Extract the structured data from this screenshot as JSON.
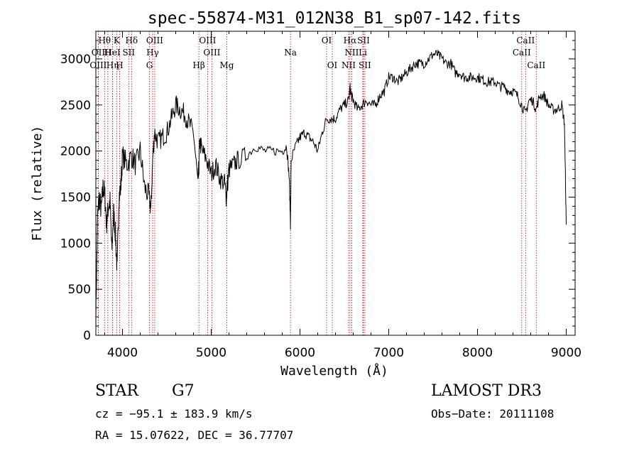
{
  "chart_data": {
    "type": "line",
    "title": "spec-55874-M31_012N38_B1_sp07-142.fits",
    "xlabel": "Wavelength (Å)",
    "ylabel": "Flux (relative)",
    "xlim": [
      3700,
      9100
    ],
    "ylim": [
      0,
      3300
    ],
    "x_ticks": [
      4000,
      5000,
      6000,
      7000,
      8000,
      9000
    ],
    "y_ticks": [
      0,
      500,
      1000,
      1500,
      2000,
      2500,
      3000
    ],
    "grid": false,
    "series": [
      {
        "name": "flux",
        "x": [
          3700,
          3720,
          3740,
          3760,
          3780,
          3800,
          3820,
          3840,
          3860,
          3880,
          3900,
          3920,
          3940,
          3960,
          3980,
          4000,
          4050,
          4100,
          4150,
          4200,
          4250,
          4300,
          4320,
          4340,
          4360,
          4400,
          4450,
          4500,
          4550,
          4600,
          4650,
          4700,
          4750,
          4800,
          4850,
          4860,
          4870,
          4900,
          4950,
          5000,
          5050,
          5100,
          5150,
          5170,
          5180,
          5200,
          5250,
          5300,
          5400,
          5500,
          5600,
          5700,
          5800,
          5850,
          5880,
          5893,
          5900,
          5950,
          6000,
          6050,
          6100,
          6150,
          6200,
          6250,
          6300,
          6350,
          6400,
          6450,
          6500,
          6550,
          6563,
          6580,
          6600,
          6650,
          6700,
          6750,
          6800,
          6850,
          6900,
          6950,
          7000,
          7050,
          7100,
          7150,
          7200,
          7250,
          7300,
          7350,
          7400,
          7450,
          7500,
          7550,
          7600,
          7650,
          7700,
          7750,
          7800,
          7850,
          7900,
          7950,
          8000,
          8050,
          8100,
          8150,
          8200,
          8250,
          8300,
          8350,
          8400,
          8450,
          8498,
          8542,
          8580,
          8620,
          8662,
          8700,
          8750,
          8800,
          8850,
          8900,
          8950,
          8980,
          9000
        ],
        "y": [
          200,
          1300,
          1500,
          1350,
          1600,
          1550,
          1200,
          1400,
          1450,
          900,
          1350,
          1100,
          700,
          1500,
          1600,
          1950,
          1850,
          1950,
          1850,
          2000,
          1600,
          1500,
          1350,
          1900,
          2200,
          2100,
          2150,
          2200,
          2350,
          2500,
          2450,
          2400,
          2300,
          2200,
          1650,
          1800,
          2100,
          2000,
          1900,
          1750,
          1850,
          1700,
          1650,
          1500,
          1600,
          1800,
          1850,
          1900,
          1950,
          2050,
          2000,
          2000,
          2000,
          2050,
          1700,
          1200,
          1900,
          2050,
          2150,
          2200,
          2150,
          2100,
          2000,
          2200,
          2350,
          2350,
          2350,
          2450,
          2500,
          2550,
          2700,
          2600,
          2550,
          2450,
          2500,
          2550,
          2500,
          2500,
          2600,
          2650,
          2800,
          2800,
          2750,
          2800,
          2850,
          2900,
          2950,
          2950,
          2950,
          3000,
          3050,
          3050,
          3000,
          2950,
          2950,
          2850,
          2850,
          2800,
          2800,
          2800,
          2800,
          2780,
          2750,
          2750,
          2750,
          2700,
          2700,
          2650,
          2650,
          2600,
          2500,
          2400,
          2550,
          2550,
          2450,
          2600,
          2600,
          2500,
          2450,
          2450,
          2500,
          2300,
          1200
        ]
      }
    ],
    "spectral_lines": [
      {
        "label": "Hθ",
        "wavelength": 3798,
        "row": 0
      },
      {
        "label": "K",
        "wavelength": 3934,
        "row": 0
      },
      {
        "label": "Hδ",
        "wavelength": 4102,
        "row": 0
      },
      {
        "label": "OIII",
        "wavelength": 4363,
        "row": 0
      },
      {
        "label": "OIII",
        "wavelength": 4959,
        "row": 0
      },
      {
        "label": "OI",
        "wavelength": 6300,
        "row": 0
      },
      {
        "label": "Hα",
        "wavelength": 6563,
        "row": 0
      },
      {
        "label": "SII",
        "wavelength": 6716,
        "row": 0
      },
      {
        "label": "CaII",
        "wavelength": 8542,
        "row": 0
      },
      {
        "label": "OII",
        "wavelength": 3727,
        "row": 1
      },
      {
        "label": "H",
        "wavelength": 3835,
        "row": 1
      },
      {
        "label": "HeI",
        "wavelength": 3889,
        "row": 1
      },
      {
        "label": "SII",
        "wavelength": 4070,
        "row": 1
      },
      {
        "label": "Hγ",
        "wavelength": 4340,
        "row": 1
      },
      {
        "label": "OIII",
        "wavelength": 5007,
        "row": 1
      },
      {
        "label": "Na",
        "wavelength": 5893,
        "row": 1
      },
      {
        "label": "NII",
        "wavelength": 6583,
        "row": 1
      },
      {
        "label": "Li",
        "wavelength": 6708,
        "row": 1
      },
      {
        "label": "CaII",
        "wavelength": 8498,
        "row": 1
      },
      {
        "label": "OIII",
        "wavelength": 3727,
        "row": 2
      },
      {
        "label": "Hη",
        "wavelength": 3889,
        "row": 2
      },
      {
        "label": "H",
        "wavelength": 3968,
        "row": 2
      },
      {
        "label": "G",
        "wavelength": 4304,
        "row": 2
      },
      {
        "label": "Hβ",
        "wavelength": 4861,
        "row": 2
      },
      {
        "label": "Mg",
        "wavelength": 5175,
        "row": 2
      },
      {
        "label": "OI",
        "wavelength": 6364,
        "row": 2
      },
      {
        "label": "NII",
        "wavelength": 6548,
        "row": 2
      },
      {
        "label": "SII",
        "wavelength": 6731,
        "row": 2
      },
      {
        "label": "CaII",
        "wavelength": 8662,
        "row": 2
      }
    ],
    "line_color": "#000000",
    "marker_color": "#cc0000"
  },
  "info": {
    "class": "STAR",
    "subclass": "G7",
    "cz": "cz = −95.1 ± 183.9 km/s",
    "coords": "RA =  15.07622, DEC =  36.77707",
    "survey": "LAMOST DR3",
    "obs_date": "Obs−Date: 20111108"
  }
}
